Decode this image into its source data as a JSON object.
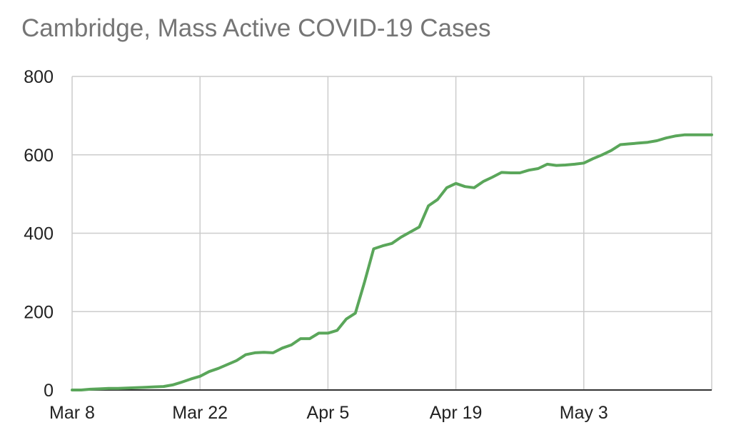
{
  "chart_data": {
    "type": "line",
    "title": "Cambridge, Mass Active COVID-19 Cases",
    "xlabel": "",
    "ylabel": "",
    "x_ticks": [
      "Mar 8",
      "Mar 22",
      "Apr 5",
      "Apr 19",
      "May 3"
    ],
    "y_ticks": [
      0,
      200,
      400,
      600,
      800
    ],
    "ylim": [
      0,
      800
    ],
    "xlim": [
      "2020-03-08",
      "2020-05-17"
    ],
    "grid": true,
    "legend": "none",
    "series_color": "#5aa65a",
    "series": [
      {
        "x": [
          "2020-03-08",
          "2020-03-09",
          "2020-03-10",
          "2020-03-11",
          "2020-03-12",
          "2020-03-13",
          "2020-03-14",
          "2020-03-15",
          "2020-03-16",
          "2020-03-17",
          "2020-03-18",
          "2020-03-19",
          "2020-03-20",
          "2020-03-21",
          "2020-03-22",
          "2020-03-23",
          "2020-03-24",
          "2020-03-25",
          "2020-03-26",
          "2020-03-27",
          "2020-03-28",
          "2020-03-29",
          "2020-03-30",
          "2020-03-31",
          "2020-04-01",
          "2020-04-02",
          "2020-04-03",
          "2020-04-04",
          "2020-04-05",
          "2020-04-06",
          "2020-04-07",
          "2020-04-08",
          "2020-04-09",
          "2020-04-10",
          "2020-04-11",
          "2020-04-12",
          "2020-04-13",
          "2020-04-14",
          "2020-04-15",
          "2020-04-16",
          "2020-04-17",
          "2020-04-18",
          "2020-04-19",
          "2020-04-20",
          "2020-04-21",
          "2020-04-22",
          "2020-04-23",
          "2020-04-24",
          "2020-04-25",
          "2020-04-26",
          "2020-04-27",
          "2020-04-28",
          "2020-04-29",
          "2020-04-30",
          "2020-05-01",
          "2020-05-02",
          "2020-05-03",
          "2020-05-04",
          "2020-05-05",
          "2020-05-06",
          "2020-05-07",
          "2020-05-08",
          "2020-05-09",
          "2020-05-10",
          "2020-05-11",
          "2020-05-12",
          "2020-05-13",
          "2020-05-14",
          "2020-05-15",
          "2020-05-16",
          "2020-05-17"
        ],
        "y": [
          0,
          0,
          2,
          3,
          4,
          4,
          5,
          6,
          7,
          8,
          9,
          13,
          20,
          28,
          35,
          47,
          55,
          65,
          75,
          90,
          95,
          96,
          95,
          107,
          115,
          131,
          131,
          145,
          145,
          152,
          181,
          196,
          275,
          360,
          368,
          374,
          390,
          403,
          416,
          470,
          486,
          516,
          527,
          519,
          516,
          532,
          543,
          555,
          554,
          554,
          561,
          565,
          576,
          573,
          574,
          576,
          579,
          590,
          600,
          611,
          626,
          628,
          630,
          632,
          636,
          643,
          648,
          651,
          651,
          651,
          651
        ]
      }
    ]
  }
}
